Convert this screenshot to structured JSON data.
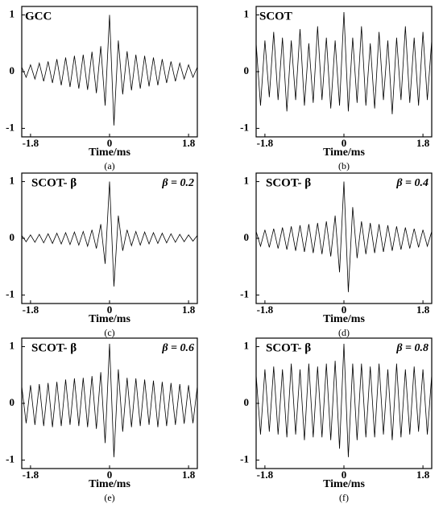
{
  "chart_data": [
    {
      "type": "line",
      "title": "GCC",
      "caption": "(a)",
      "xlabel": "Time/ms",
      "color": "#000000",
      "x": [
        -2,
        -1.9,
        -1.8,
        -1.7,
        -1.6,
        -1.5,
        -1.4,
        -1.3,
        -1.2,
        -1.1,
        -1,
        -0.9,
        -0.8,
        -0.7,
        -0.6,
        -0.5,
        -0.4,
        -0.3,
        -0.2,
        -0.1,
        0,
        0.1,
        0.2,
        0.3,
        0.4,
        0.5,
        0.6,
        0.7,
        0.8,
        0.9,
        1,
        1.1,
        1.2,
        1.3,
        1.4,
        1.5,
        1.6,
        1.7,
        1.8,
        1.9,
        2
      ],
      "values": [
        0.08,
        -0.1,
        0.12,
        -0.13,
        0.15,
        -0.17,
        0.18,
        -0.2,
        0.22,
        -0.24,
        0.25,
        -0.27,
        0.28,
        -0.3,
        0.3,
        -0.32,
        0.35,
        -0.38,
        0.45,
        -0.6,
        1,
        -0.95,
        0.55,
        -0.4,
        0.36,
        -0.33,
        0.3,
        -0.3,
        0.28,
        -0.26,
        0.25,
        -0.24,
        0.22,
        -0.2,
        0.18,
        -0.17,
        0.15,
        -0.13,
        0.12,
        -0.1,
        0.08
      ],
      "xlim": [
        -2,
        2
      ],
      "ylim": [
        -1.15,
        1.15
      ],
      "xticks": [
        -1.8,
        0,
        1.8
      ],
      "yticks": [
        1,
        0,
        -1
      ]
    },
    {
      "type": "line",
      "title": "SCOT",
      "caption": "(b)",
      "xlabel": "Time/ms",
      "color": "#000000",
      "x": [
        -2,
        -1.9,
        -1.8,
        -1.7,
        -1.6,
        -1.5,
        -1.4,
        -1.3,
        -1.2,
        -1.1,
        -1,
        -0.9,
        -0.8,
        -0.7,
        -0.6,
        -0.5,
        -0.4,
        -0.3,
        -0.2,
        -0.1,
        0,
        0.1,
        0.2,
        0.3,
        0.4,
        0.5,
        0.6,
        0.7,
        0.8,
        0.9,
        1,
        1.1,
        1.2,
        1.3,
        1.4,
        1.5,
        1.6,
        1.7,
        1.8,
        1.9,
        2
      ],
      "values": [
        0.5,
        -0.6,
        0.55,
        -0.45,
        0.7,
        -0.5,
        0.6,
        -0.7,
        0.55,
        -0.5,
        0.75,
        -0.6,
        0.5,
        -0.55,
        0.8,
        -0.5,
        0.6,
        -0.65,
        0.55,
        -0.6,
        1.05,
        -0.7,
        0.6,
        -0.55,
        0.8,
        -0.6,
        0.5,
        -0.65,
        0.7,
        -0.5,
        0.55,
        -0.75,
        0.6,
        -0.5,
        0.8,
        -0.55,
        0.6,
        -0.6,
        0.7,
        -0.5,
        0.55
      ],
      "xlim": [
        -2,
        2
      ],
      "ylim": [
        -1.15,
        1.15
      ],
      "xticks": [
        -1.8,
        0,
        1.8
      ],
      "yticks": [
        1,
        0,
        -1
      ]
    },
    {
      "type": "line",
      "title": "SCOT- β",
      "annotation": "β = 0.2",
      "caption": "(c)",
      "xlabel": "Time/ms",
      "color": "#000000",
      "x": [
        -2,
        -1.9,
        -1.8,
        -1.7,
        -1.6,
        -1.5,
        -1.4,
        -1.3,
        -1.2,
        -1.1,
        -1,
        -0.9,
        -0.8,
        -0.7,
        -0.6,
        -0.5,
        -0.4,
        -0.3,
        -0.2,
        -0.1,
        0,
        0.1,
        0.2,
        0.3,
        0.4,
        0.5,
        0.6,
        0.7,
        0.8,
        0.9,
        1,
        1.1,
        1.2,
        1.3,
        1.4,
        1.5,
        1.6,
        1.7,
        1.8,
        1.9,
        2
      ],
      "values": [
        0.05,
        -0.06,
        0.06,
        -0.07,
        0.07,
        -0.08,
        0.08,
        -0.09,
        0.09,
        -0.1,
        0.1,
        -0.11,
        0.11,
        -0.12,
        0.12,
        -0.14,
        0.15,
        -0.18,
        0.25,
        -0.45,
        1,
        -0.85,
        0.4,
        -0.22,
        0.15,
        -0.13,
        0.12,
        -0.12,
        0.11,
        -0.1,
        0.1,
        -0.09,
        0.09,
        -0.08,
        0.08,
        -0.07,
        0.07,
        -0.06,
        0.06,
        -0.05,
        0.05
      ],
      "xlim": [
        -2,
        2
      ],
      "ylim": [
        -1.15,
        1.15
      ],
      "xticks": [
        -1.8,
        0,
        1.8
      ],
      "yticks": [
        1,
        0,
        -1
      ]
    },
    {
      "type": "line",
      "title": "SCOT- β",
      "annotation": "β = 0.4",
      "caption": "(d)",
      "xlabel": "Time/ms",
      "color": "#000000",
      "x": [
        -2,
        -1.9,
        -1.8,
        -1.7,
        -1.6,
        -1.5,
        -1.4,
        -1.3,
        -1.2,
        -1.1,
        -1,
        -0.9,
        -0.8,
        -0.7,
        -0.6,
        -0.5,
        -0.4,
        -0.3,
        -0.2,
        -0.1,
        0,
        0.1,
        0.2,
        0.3,
        0.4,
        0.5,
        0.6,
        0.7,
        0.8,
        0.9,
        1,
        1.1,
        1.2,
        1.3,
        1.4,
        1.5,
        1.6,
        1.7,
        1.8,
        1.9,
        2
      ],
      "values": [
        0.12,
        -0.14,
        0.15,
        -0.16,
        0.17,
        -0.18,
        0.19,
        -0.2,
        0.21,
        -0.22,
        0.23,
        -0.24,
        0.25,
        -0.26,
        0.27,
        -0.28,
        0.3,
        -0.32,
        0.4,
        -0.6,
        1,
        -0.95,
        0.55,
        -0.35,
        0.3,
        -0.28,
        0.27,
        -0.26,
        0.25,
        -0.24,
        0.23,
        -0.22,
        0.21,
        -0.2,
        0.19,
        -0.18,
        0.17,
        -0.16,
        0.15,
        -0.14,
        0.12
      ],
      "xlim": [
        -2,
        2
      ],
      "ylim": [
        -1.15,
        1.15
      ],
      "xticks": [
        -1.8,
        0,
        1.8
      ],
      "yticks": [
        1,
        0,
        -1
      ]
    },
    {
      "type": "line",
      "title": "SCOT- β",
      "annotation": "β = 0.6",
      "caption": "(e)",
      "xlabel": "Time/ms",
      "color": "#000000",
      "x": [
        -2,
        -1.9,
        -1.8,
        -1.7,
        -1.6,
        -1.5,
        -1.4,
        -1.3,
        -1.2,
        -1.1,
        -1,
        -0.9,
        -0.8,
        -0.7,
        -0.6,
        -0.5,
        -0.4,
        -0.3,
        -0.2,
        -0.1,
        0,
        0.1,
        0.2,
        0.3,
        0.4,
        0.5,
        0.6,
        0.7,
        0.8,
        0.9,
        1,
        1.1,
        1.2,
        1.3,
        1.4,
        1.5,
        1.6,
        1.7,
        1.8,
        1.9,
        2
      ],
      "values": [
        0.3,
        -0.35,
        0.32,
        -0.38,
        0.34,
        -0.4,
        0.36,
        -0.42,
        0.38,
        -0.4,
        0.42,
        -0.38,
        0.44,
        -0.4,
        0.45,
        -0.42,
        0.48,
        -0.45,
        0.55,
        -0.7,
        1.05,
        -0.95,
        0.6,
        -0.5,
        0.45,
        -0.42,
        0.44,
        -0.4,
        0.42,
        -0.38,
        0.4,
        -0.42,
        0.38,
        -0.4,
        0.36,
        -0.38,
        0.34,
        -0.36,
        0.32,
        -0.35,
        0.3
      ],
      "xlim": [
        -2,
        2
      ],
      "ylim": [
        -1.15,
        1.15
      ],
      "xticks": [
        -1.8,
        0,
        1.8
      ],
      "yticks": [
        1,
        0,
        -1
      ]
    },
    {
      "type": "line",
      "title": "SCOT- β",
      "annotation": "β = 0.8",
      "caption": "(f)",
      "xlabel": "Time/ms",
      "color": "#000000",
      "x": [
        -2,
        -1.9,
        -1.8,
        -1.7,
        -1.6,
        -1.5,
        -1.4,
        -1.3,
        -1.2,
        -1.1,
        -1,
        -0.9,
        -0.8,
        -0.7,
        -0.6,
        -0.5,
        -0.4,
        -0.3,
        -0.2,
        -0.1,
        0,
        0.1,
        0.2,
        0.3,
        0.4,
        0.5,
        0.6,
        0.7,
        0.8,
        0.9,
        1,
        1.1,
        1.2,
        1.3,
        1.4,
        1.5,
        1.6,
        1.7,
        1.8,
        1.9,
        2
      ],
      "values": [
        0.5,
        -0.55,
        0.6,
        -0.5,
        0.65,
        -0.55,
        0.6,
        -0.6,
        0.7,
        -0.55,
        0.6,
        -0.65,
        0.7,
        -0.6,
        0.65,
        -0.6,
        0.7,
        -0.65,
        0.75,
        -0.8,
        1.05,
        -0.95,
        0.7,
        -0.65,
        0.7,
        -0.6,
        0.65,
        -0.6,
        0.7,
        -0.55,
        0.6,
        -0.65,
        0.7,
        -0.6,
        0.6,
        -0.55,
        0.65,
        -0.5,
        0.6,
        -0.55,
        0.5
      ],
      "xlim": [
        -2,
        2
      ],
      "ylim": [
        -1.15,
        1.15
      ],
      "xticks": [
        -1.8,
        0,
        1.8
      ],
      "yticks": [
        1,
        0,
        -1
      ]
    }
  ]
}
